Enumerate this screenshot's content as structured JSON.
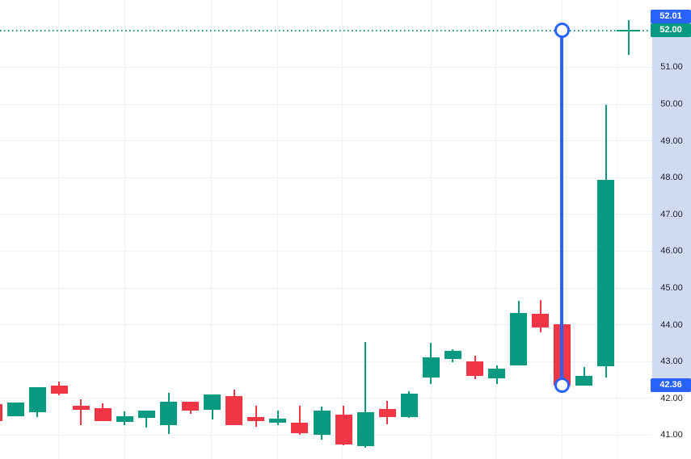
{
  "chart_data": {
    "type": "candlestick",
    "title": "",
    "y_axis": {
      "tick_labels": [
        "51.00",
        "50.00",
        "49.00",
        "48.00",
        "47.00",
        "46.00",
        "45.00",
        "44.00",
        "43.00",
        "42.00",
        "41.00"
      ],
      "visible_price_range": [
        40.6,
        52.3
      ],
      "grid": true,
      "position": "right"
    },
    "candles": [
      {
        "o": 41.84,
        "h": 41.84,
        "l": 41.39,
        "c": 41.39
      },
      {
        "o": 41.51,
        "h": 41.89,
        "l": 41.51,
        "c": 41.89
      },
      {
        "o": 41.62,
        "h": 42.3,
        "l": 41.49,
        "c": 42.3
      },
      {
        "o": 42.35,
        "h": 42.46,
        "l": 42.08,
        "c": 42.13
      },
      {
        "o": 41.8,
        "h": 41.97,
        "l": 41.27,
        "c": 41.68
      },
      {
        "o": 41.73,
        "h": 41.86,
        "l": 41.38,
        "c": 41.38
      },
      {
        "o": 41.36,
        "h": 41.65,
        "l": 41.27,
        "c": 41.51
      },
      {
        "o": 41.47,
        "h": 41.67,
        "l": 41.21,
        "c": 41.67
      },
      {
        "o": 41.28,
        "h": 42.14,
        "l": 41.04,
        "c": 41.91
      },
      {
        "o": 41.9,
        "h": 41.91,
        "l": 41.58,
        "c": 41.67
      },
      {
        "o": 41.69,
        "h": 42.1,
        "l": 41.43,
        "c": 42.1
      },
      {
        "o": 42.07,
        "h": 42.23,
        "l": 41.27,
        "c": 41.27
      },
      {
        "o": 41.5,
        "h": 41.79,
        "l": 41.22,
        "c": 41.38
      },
      {
        "o": 41.34,
        "h": 41.66,
        "l": 41.28,
        "c": 41.44
      },
      {
        "o": 41.33,
        "h": 41.8,
        "l": 41.0,
        "c": 41.06
      },
      {
        "o": 41.0,
        "h": 41.77,
        "l": 40.88,
        "c": 41.66
      },
      {
        "o": 41.55,
        "h": 41.8,
        "l": 40.73,
        "c": 40.74
      },
      {
        "o": 40.7,
        "h": 43.52,
        "l": 40.66,
        "c": 41.62
      },
      {
        "o": 41.7,
        "h": 41.94,
        "l": 41.3,
        "c": 41.49
      },
      {
        "o": 41.48,
        "h": 42.19,
        "l": 41.48,
        "c": 42.12
      },
      {
        "o": 42.56,
        "h": 43.51,
        "l": 42.4,
        "c": 43.11
      },
      {
        "o": 43.07,
        "h": 43.34,
        "l": 42.98,
        "c": 43.3
      },
      {
        "o": 43.01,
        "h": 43.15,
        "l": 42.52,
        "c": 42.6
      },
      {
        "o": 42.54,
        "h": 42.9,
        "l": 42.39,
        "c": 42.81
      },
      {
        "o": 42.89,
        "h": 44.66,
        "l": 42.89,
        "c": 44.31
      },
      {
        "o": 44.29,
        "h": 44.67,
        "l": 43.8,
        "c": 43.93
      },
      {
        "o": 44.02,
        "h": 44.02,
        "l": 42.34,
        "c": 42.34
      },
      {
        "o": 42.34,
        "h": 42.86,
        "l": 42.34,
        "c": 42.6
      },
      {
        "o": 42.87,
        "h": 49.98,
        "l": 42.56,
        "c": 47.94
      }
    ],
    "overlays": {
      "price_line": {
        "price": 52.0,
        "label": "52.00",
        "style": "dotted",
        "color": "#089981"
      },
      "crosshair": {
        "price": 52.01,
        "label": "52.01",
        "color": "#2962FF"
      },
      "drawing": {
        "type": "vertical-line",
        "top_price": 52.01,
        "bottom_price": 42.36,
        "top_label": "52.01",
        "bottom_label": "42.36",
        "color": "#2962FF"
      }
    },
    "colors": {
      "up": "#089981",
      "down": "#F23645",
      "accent_blue": "#2962FF",
      "grid": "#eff1f5",
      "axis_text": "#20222c",
      "axis_highlight": "#d0daf3",
      "label_text": "#ffffff",
      "background": "#ffffff"
    },
    "legend_position": "none"
  }
}
